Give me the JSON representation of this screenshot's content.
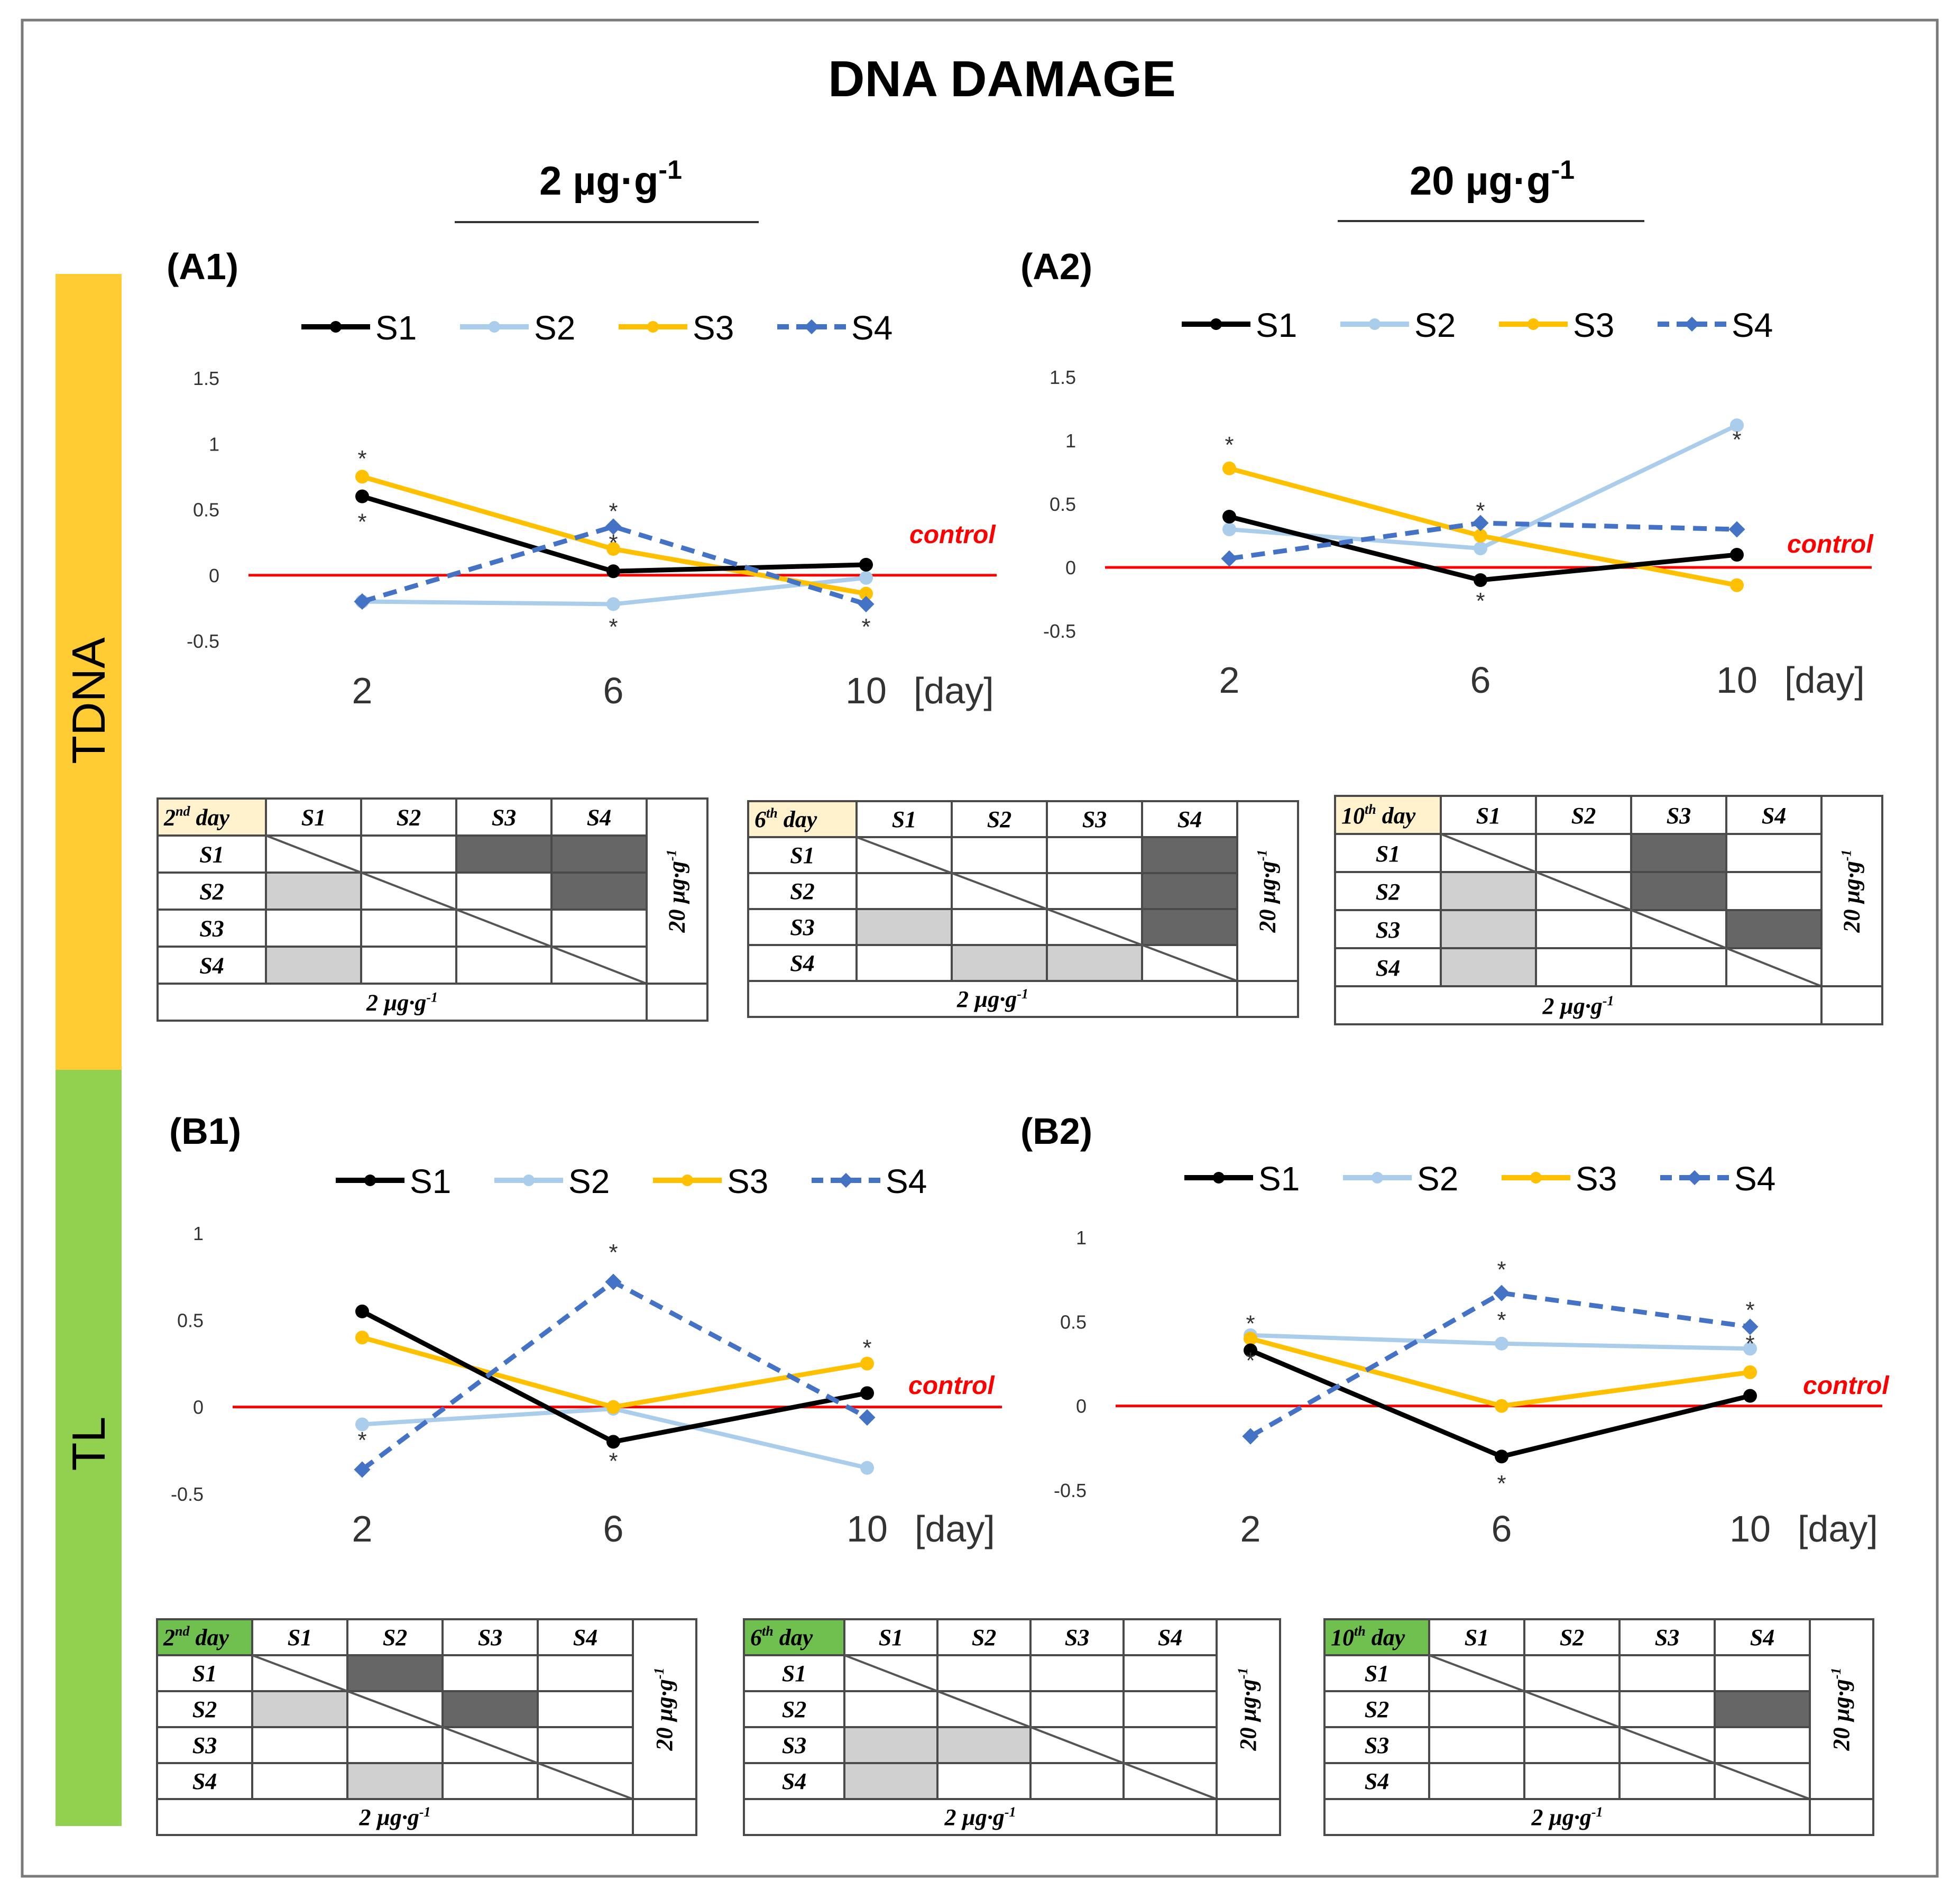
{
  "title": "DNA DAMAGE",
  "dose_labels": {
    "low": "2 µg·g",
    "high": "20 µg·g",
    "exponent": "-1"
  },
  "row_labels": {
    "tdna": "TDNA",
    "tl": "TL"
  },
  "control_label": "control",
  "day_unit": "[day]",
  "legend": [
    "S1",
    "S2",
    "S3",
    "S4"
  ],
  "colors": {
    "S1": "#000000",
    "S2": "#a9cdea",
    "S3": "#ffc000",
    "S4": "#4472c4",
    "control": "#ff0000",
    "tdna_band": "#ffcc33",
    "tl_band": "#92d050",
    "dark_cell": "#666666",
    "light_cell": "#d0d0d0",
    "tdna_header": "#fff2cc",
    "tl_header": "#70c050"
  },
  "chart_data": [
    {
      "id": "A1",
      "panel_label": "(A1)",
      "type": "line",
      "dose": "2 µg·g-1",
      "metric": "TDNA",
      "x": [
        2,
        6,
        10
      ],
      "ylim": [
        -0.5,
        1.5
      ],
      "yticks": [
        "1.5",
        "1",
        "0.5",
        "0",
        "-0.5"
      ],
      "series": [
        {
          "name": "S1",
          "values": [
            0.6,
            0.03,
            0.08
          ]
        },
        {
          "name": "S2",
          "values": [
            -0.2,
            -0.22,
            -0.02
          ]
        },
        {
          "name": "S3",
          "values": [
            0.75,
            0.2,
            -0.14
          ]
        },
        {
          "name": "S4",
          "values": [
            -0.2,
            0.37,
            -0.22
          ]
        }
      ],
      "significance": [
        {
          "x": 2,
          "value": 0.9
        },
        {
          "x": 2,
          "value": 0.42
        },
        {
          "x": 6,
          "value": 0.5
        },
        {
          "x": 6,
          "value": 0.26
        },
        {
          "x": 6,
          "value": -0.38
        },
        {
          "x": 10,
          "value": -0.38
        }
      ]
    },
    {
      "id": "A2",
      "panel_label": "(A2)",
      "type": "line",
      "dose": "20 µg·g-1",
      "metric": "TDNA",
      "x": [
        2,
        6,
        10
      ],
      "ylim": [
        -0.5,
        1.5
      ],
      "yticks": [
        "1.5",
        "1",
        "0.5",
        "0",
        "-0.5"
      ],
      "series": [
        {
          "name": "S1",
          "values": [
            0.4,
            -0.1,
            0.1
          ]
        },
        {
          "name": "S2",
          "values": [
            0.3,
            0.15,
            1.12
          ]
        },
        {
          "name": "S3",
          "values": [
            0.78,
            0.25,
            -0.14
          ]
        },
        {
          "name": "S4",
          "values": [
            0.07,
            0.35,
            0.3
          ]
        }
      ],
      "significance": [
        {
          "x": 2,
          "value": 0.98
        },
        {
          "x": 6,
          "value": 0.46
        },
        {
          "x": 6,
          "value": -0.25
        },
        {
          "x": 10,
          "value": 1.02
        }
      ]
    },
    {
      "id": "B1",
      "panel_label": "(B1)",
      "type": "line",
      "dose": "2 µg·g-1",
      "metric": "TL",
      "x": [
        2,
        6,
        10
      ],
      "ylim": [
        -0.5,
        1
      ],
      "yticks": [
        "1",
        "0.5",
        "0",
        "-0.5"
      ],
      "series": [
        {
          "name": "S1",
          "values": [
            0.55,
            -0.2,
            0.08
          ]
        },
        {
          "name": "S2",
          "values": [
            -0.1,
            -0.01,
            -0.35
          ]
        },
        {
          "name": "S3",
          "values": [
            0.4,
            0.0,
            0.25
          ]
        },
        {
          "name": "S4",
          "values": [
            -0.36,
            0.72,
            -0.06
          ]
        }
      ],
      "significance": [
        {
          "x": 2,
          "value": -0.18
        },
        {
          "x": 6,
          "value": 0.9
        },
        {
          "x": 6,
          "value": -0.3
        },
        {
          "x": 10,
          "value": 0.35
        }
      ]
    },
    {
      "id": "B2",
      "panel_label": "(B2)",
      "type": "line",
      "dose": "20 µg·g-1",
      "metric": "TL",
      "x": [
        2,
        6,
        10
      ],
      "ylim": [
        -0.5,
        1
      ],
      "yticks": [
        "1",
        "0.5",
        "0",
        "-0.5"
      ],
      "series": [
        {
          "name": "S1",
          "values": [
            0.33,
            -0.3,
            0.06
          ]
        },
        {
          "name": "S2",
          "values": [
            0.42,
            0.37,
            0.34
          ]
        },
        {
          "name": "S3",
          "values": [
            0.4,
            0.0,
            0.2
          ]
        },
        {
          "name": "S4",
          "values": [
            -0.18,
            0.67,
            0.47
          ]
        }
      ],
      "significance": [
        {
          "x": 2,
          "value": 0.5
        },
        {
          "x": 2,
          "value": 0.28
        },
        {
          "x": 6,
          "value": 0.82
        },
        {
          "x": 6,
          "value": 0.52
        },
        {
          "x": 6,
          "value": -0.45
        },
        {
          "x": 10,
          "value": 0.58
        },
        {
          "x": 10,
          "value": 0.38
        }
      ]
    },
    {
      "id": "TA",
      "type": "table",
      "metric": "TDNA",
      "matrices": [
        {
          "id": "tA2",
          "header": [
            "2",
            "nd",
            " day"
          ],
          "dark": [
            [
              0,
              2
            ],
            [
              0,
              3
            ],
            [
              1,
              3
            ]
          ],
          "light": [
            [
              1,
              0
            ],
            [
              3,
              0
            ]
          ]
        },
        {
          "id": "tA6",
          "header": [
            "6",
            "th",
            " day"
          ],
          "dark": [
            [
              0,
              3
            ],
            [
              1,
              3
            ],
            [
              2,
              3
            ]
          ],
          "light": [
            [
              2,
              0
            ],
            [
              3,
              1
            ],
            [
              3,
              2
            ]
          ]
        },
        {
          "id": "tA10",
          "header": [
            "10",
            "th",
            " day"
          ],
          "dark": [
            [
              0,
              2
            ],
            [
              1,
              2
            ],
            [
              2,
              3
            ]
          ],
          "light": [
            [
              1,
              0
            ],
            [
              2,
              0
            ],
            [
              3,
              0
            ]
          ]
        }
      ]
    },
    {
      "id": "TB",
      "type": "table",
      "metric": "TL",
      "matrices": [
        {
          "id": "tB2",
          "header": [
            "2",
            "nd",
            " day"
          ],
          "dark": [
            [
              0,
              1
            ],
            [
              1,
              2
            ]
          ],
          "light": [
            [
              1,
              0
            ],
            [
              3,
              1
            ]
          ]
        },
        {
          "id": "tB6",
          "header": [
            "6",
            "th",
            " day"
          ],
          "dark": [],
          "light": [
            [
              2,
              0
            ],
            [
              2,
              1
            ],
            [
              3,
              0
            ]
          ]
        },
        {
          "id": "tB10",
          "header": [
            "10",
            "th",
            " day"
          ],
          "dark": [
            [
              1,
              3
            ]
          ],
          "light": []
        }
      ]
    }
  ],
  "table_labels": {
    "col": [
      "S1",
      "S2",
      "S3",
      "S4"
    ],
    "row": [
      "S1",
      "S2",
      "S3",
      "S4"
    ],
    "bottom": "2 µg·g",
    "right": "20 µg·g",
    "exponent": "-1"
  }
}
